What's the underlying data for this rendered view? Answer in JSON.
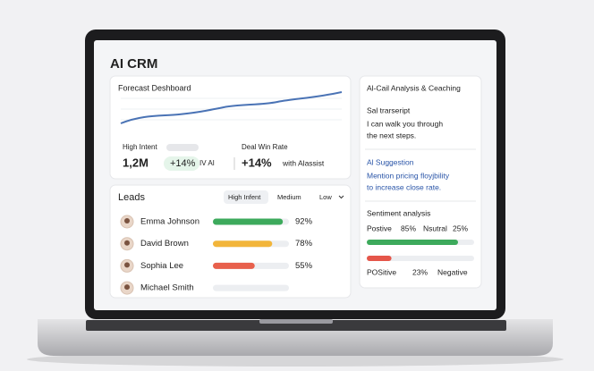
{
  "screen": {
    "title": "AI CRM"
  },
  "forecast": {
    "title": "Forecast Deshboard",
    "high_intent_label": "High Intent",
    "high_intent_value": "1,2M",
    "high_intent_change": "+14%",
    "high_intent_note": "IV AI",
    "win_rate_label": "Deal Win Rate",
    "win_rate_value": "+14%",
    "win_rate_note": "with Alassist"
  },
  "leads": {
    "title": "Leads",
    "filters": [
      "High Infent",
      "Medium",
      "Low"
    ],
    "rows": [
      {
        "name": "Emma Johnson",
        "value": 92,
        "label": "92%"
      },
      {
        "name": "David Brown",
        "value": 78,
        "label": "78%"
      },
      {
        "name": "Sophia Lee",
        "value": 55,
        "label": "55%"
      },
      {
        "name": "Michael Smith"
      }
    ]
  },
  "analysis": {
    "title": "Al-Cail Analysis & Ceaching",
    "transcript_title": "Sal trarseript",
    "transcript": [
      "I can walk you through",
      "the next steps."
    ],
    "suggestion_title": "Al Suggestion",
    "suggestion": [
      "Mention pricing floyjbility",
      "to increase close rate."
    ],
    "sentiment": {
      "title": "Sentiment analysis",
      "positive_name": "Postive",
      "positive_value": 85,
      "positive_label": "85%",
      "neutral_name": "Nsutral",
      "neutral_value": 25,
      "neutral_label": "25%",
      "second_name": "POSitive",
      "second_value": 23,
      "second_label": "23%",
      "negative_name": "Negative"
    }
  }
}
